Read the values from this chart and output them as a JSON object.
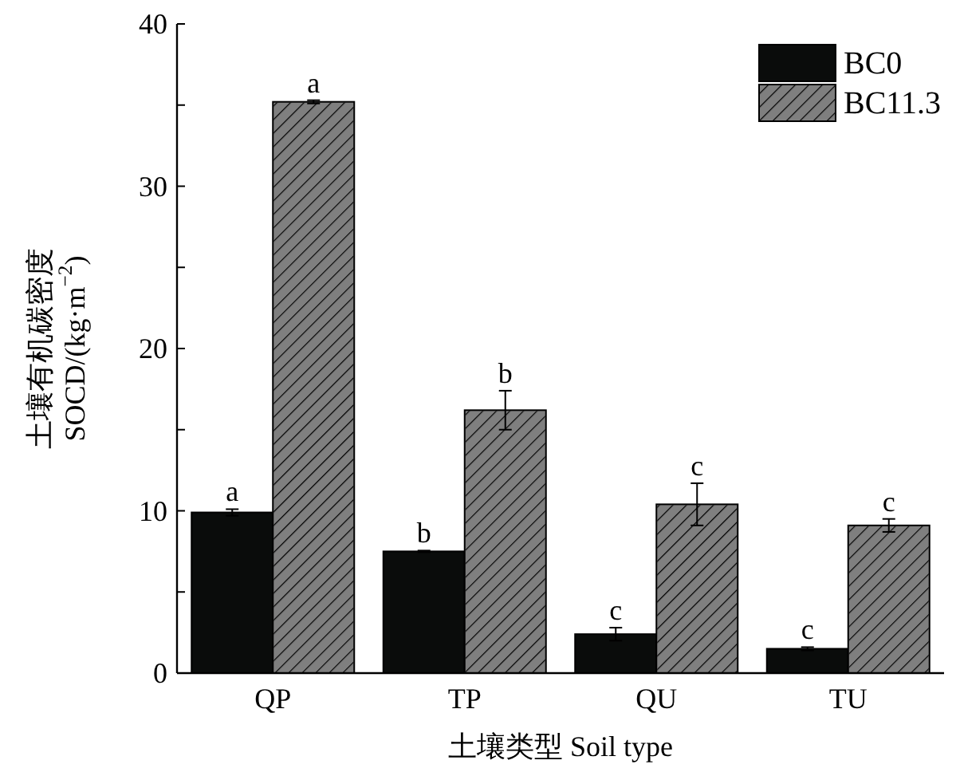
{
  "chart_data": {
    "type": "bar",
    "xlabel": "土壤类型 Soil type",
    "ylabel": "土壤有机碳密度\nSOCD/(kg·m$^{−2}$)",
    "categories": [
      "QP",
      "TP",
      "QU",
      "TU"
    ],
    "series": [
      {
        "name": "BC0",
        "color": "#0a0c0b",
        "values": [
          9.9,
          7.5,
          2.4,
          1.5
        ],
        "errors": [
          0.2,
          0.05,
          0.4,
          0.1
        ]
      },
      {
        "name": "BC11.3",
        "color": "#7f7f7f",
        "values": [
          35.2,
          16.2,
          10.4,
          9.1
        ],
        "errors": [
          0.1,
          1.2,
          1.3,
          0.4
        ]
      }
    ],
    "ylim": [
      0,
      40
    ],
    "yticks": [
      0,
      {
        "value": 5,
        "label": null
      },
      10,
      {
        "value": 15,
        "label": null
      },
      20,
      {
        "value": 25,
        "label": null
      },
      30,
      {
        "value": 35,
        "label": null
      },
      40
    ],
    "legend": "top right",
    "grid": false,
    "annotations": [
      {
        "text": "a",
        "x": "QP",
        "y": 9.9
      },
      {
        "text": "a",
        "x": "QP",
        "y": 35.2
      },
      {
        "text": "b",
        "x": "TP",
        "y": 7.5
      },
      {
        "text": "b",
        "x": "TP",
        "y": 16.2
      },
      {
        "text": "c",
        "x": "QU",
        "y": 2.4
      },
      {
        "text": "c",
        "x": "QU",
        "y": 10.4
      },
      {
        "text": "c",
        "x": "TU",
        "y": 1.5
      },
      {
        "text": "c",
        "x": "TU",
        "y": 9.1
      }
    ]
  }
}
